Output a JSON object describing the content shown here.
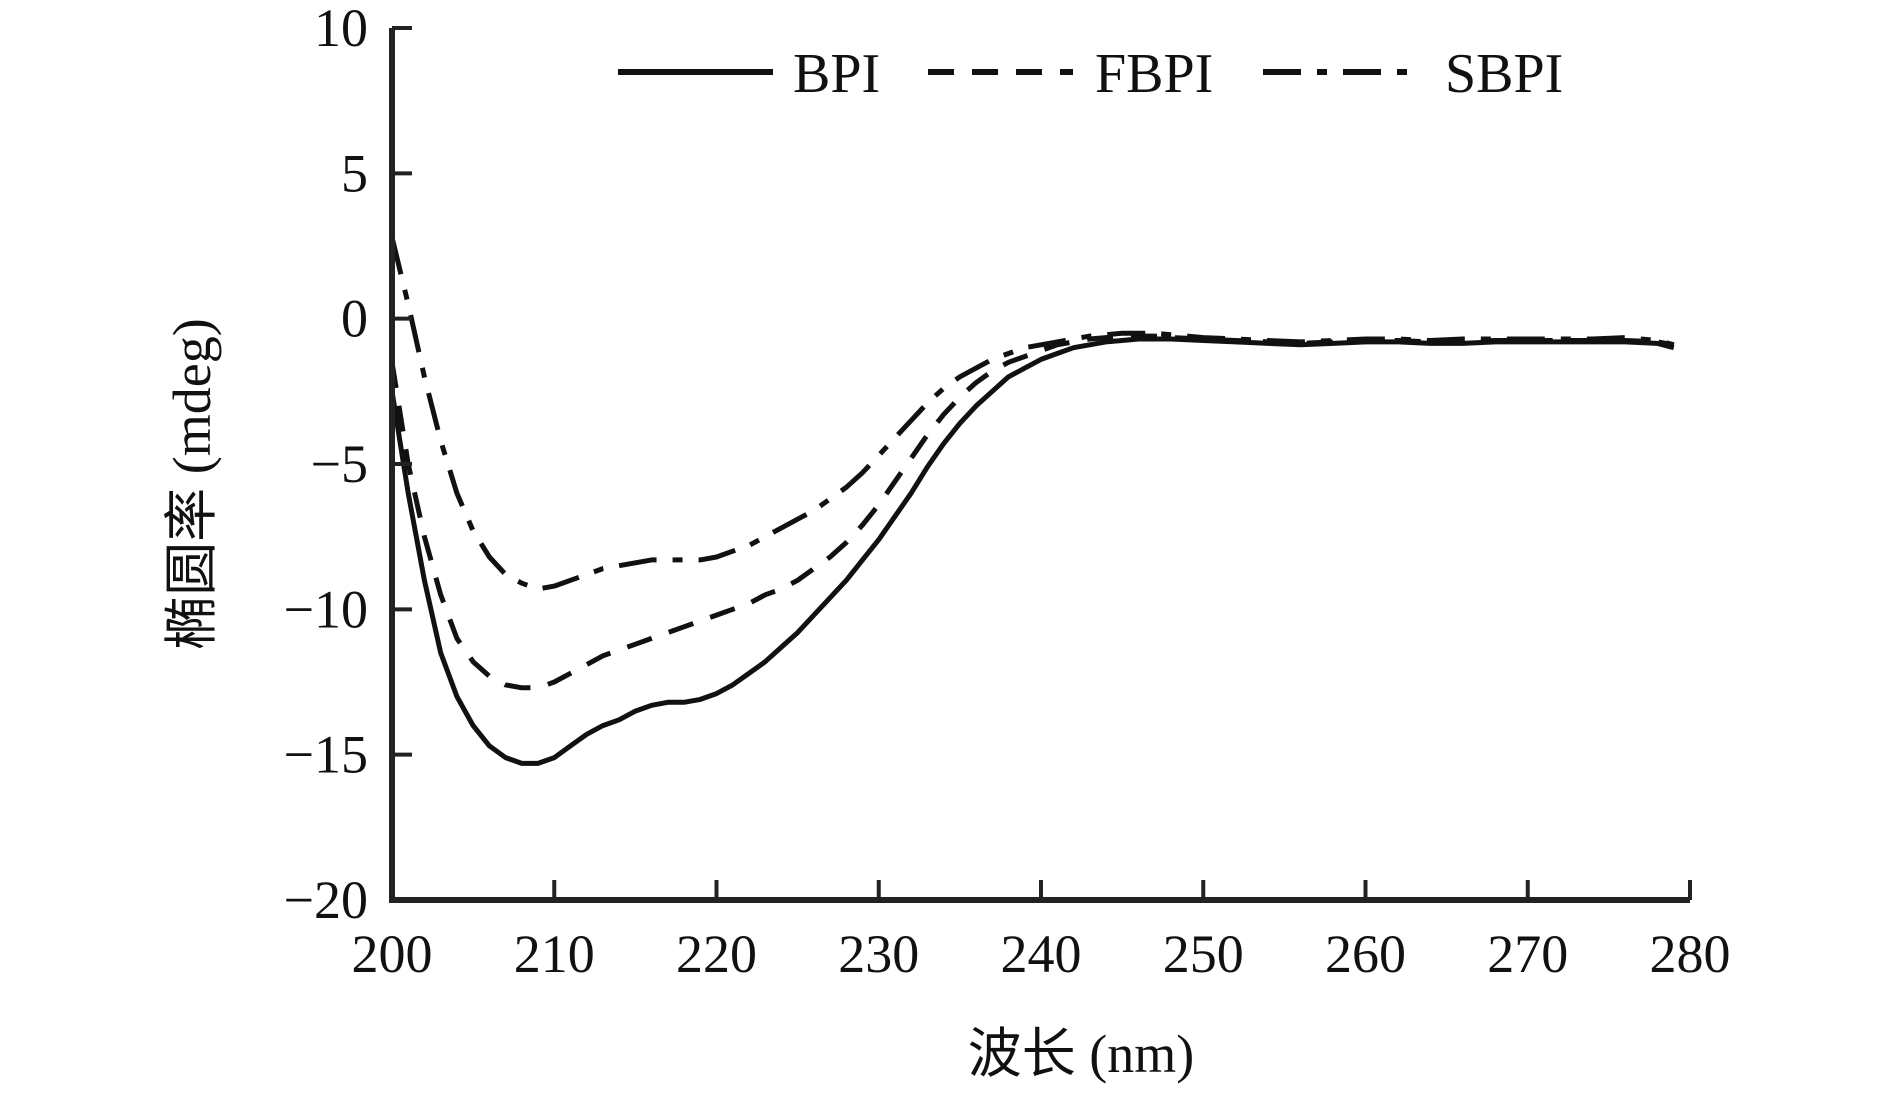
{
  "chart_data": {
    "type": "line",
    "title": "",
    "xlabel": "波长 (nm)",
    "ylabel": "椭圆率 (mdeg)",
    "xlim": [
      200,
      280
    ],
    "ylim": [
      -20,
      10
    ],
    "x_ticks": [
      200,
      210,
      220,
      230,
      240,
      250,
      260,
      270,
      280
    ],
    "x_tick_labels": [
      "200",
      "210",
      "220",
      "230",
      "240",
      "250",
      "260",
      "270",
      "280"
    ],
    "y_ticks": [
      10,
      5,
      0,
      -5,
      -10,
      -15,
      -20
    ],
    "y_tick_labels": [
      "10",
      "5",
      "0",
      "−5",
      "−10",
      "−15",
      "−20"
    ],
    "grid": false,
    "legend_position": "top",
    "series": [
      {
        "name": "BPI",
        "style": "solid",
        "color": "#111111",
        "points": [
          [
            200,
            -2.5
          ],
          [
            201,
            -6
          ],
          [
            202,
            -9
          ],
          [
            203,
            -11.5
          ],
          [
            204,
            -13
          ],
          [
            205,
            -14
          ],
          [
            206,
            -14.7
          ],
          [
            207,
            -15.1
          ],
          [
            208,
            -15.3
          ],
          [
            209,
            -15.3
          ],
          [
            210,
            -15.1
          ],
          [
            211,
            -14.7
          ],
          [
            212,
            -14.3
          ],
          [
            213,
            -14
          ],
          [
            214,
            -13.8
          ],
          [
            215,
            -13.5
          ],
          [
            216,
            -13.3
          ],
          [
            217,
            -13.2
          ],
          [
            218,
            -13.2
          ],
          [
            219,
            -13.1
          ],
          [
            220,
            -12.9
          ],
          [
            221,
            -12.6
          ],
          [
            222,
            -12.2
          ],
          [
            223,
            -11.8
          ],
          [
            224,
            -11.3
          ],
          [
            225,
            -10.8
          ],
          [
            226,
            -10.2
          ],
          [
            227,
            -9.6
          ],
          [
            228,
            -9
          ],
          [
            229,
            -8.3
          ],
          [
            230,
            -7.6
          ],
          [
            231,
            -6.8
          ],
          [
            232,
            -6
          ],
          [
            233,
            -5.1
          ],
          [
            234,
            -4.3
          ],
          [
            235,
            -3.6
          ],
          [
            236,
            -3
          ],
          [
            237,
            -2.5
          ],
          [
            238,
            -2
          ],
          [
            239,
            -1.7
          ],
          [
            240,
            -1.4
          ],
          [
            241,
            -1.2
          ],
          [
            242,
            -1
          ],
          [
            243,
            -0.9
          ],
          [
            244,
            -0.8
          ],
          [
            245,
            -0.75
          ],
          [
            246,
            -0.7
          ],
          [
            247,
            -0.7
          ],
          [
            248,
            -0.7
          ],
          [
            250,
            -0.75
          ],
          [
            252,
            -0.8
          ],
          [
            254,
            -0.85
          ],
          [
            256,
            -0.9
          ],
          [
            258,
            -0.85
          ],
          [
            260,
            -0.8
          ],
          [
            262,
            -0.8
          ],
          [
            264,
            -0.85
          ],
          [
            266,
            -0.85
          ],
          [
            268,
            -0.8
          ],
          [
            270,
            -0.8
          ],
          [
            272,
            -0.8
          ],
          [
            274,
            -0.8
          ],
          [
            276,
            -0.8
          ],
          [
            278,
            -0.85
          ],
          [
            279,
            -1
          ]
        ]
      },
      {
        "name": "FBPI",
        "style": "dashed",
        "color": "#111111",
        "points": [
          [
            200,
            -1.5
          ],
          [
            201,
            -5
          ],
          [
            202,
            -7.5
          ],
          [
            203,
            -9.5
          ],
          [
            204,
            -11
          ],
          [
            205,
            -11.8
          ],
          [
            206,
            -12.3
          ],
          [
            207,
            -12.6
          ],
          [
            208,
            -12.7
          ],
          [
            209,
            -12.7
          ],
          [
            210,
            -12.5
          ],
          [
            211,
            -12.2
          ],
          [
            212,
            -11.9
          ],
          [
            213,
            -11.6
          ],
          [
            214,
            -11.4
          ],
          [
            215,
            -11.2
          ],
          [
            216,
            -11
          ],
          [
            217,
            -10.8
          ],
          [
            218,
            -10.6
          ],
          [
            219,
            -10.4
          ],
          [
            220,
            -10.2
          ],
          [
            221,
            -10
          ],
          [
            222,
            -9.8
          ],
          [
            223,
            -9.5
          ],
          [
            224,
            -9.3
          ],
          [
            225,
            -9
          ],
          [
            226,
            -8.6
          ],
          [
            227,
            -8.2
          ],
          [
            228,
            -7.7
          ],
          [
            229,
            -7.1
          ],
          [
            230,
            -6.4
          ],
          [
            231,
            -5.6
          ],
          [
            232,
            -4.8
          ],
          [
            233,
            -4
          ],
          [
            234,
            -3.3
          ],
          [
            235,
            -2.7
          ],
          [
            236,
            -2.2
          ],
          [
            237,
            -1.8
          ],
          [
            238,
            -1.5
          ],
          [
            239,
            -1.3
          ],
          [
            240,
            -1.1
          ],
          [
            241,
            -0.9
          ],
          [
            242,
            -0.8
          ],
          [
            243,
            -0.7
          ],
          [
            244,
            -0.65
          ],
          [
            245,
            -0.6
          ],
          [
            246,
            -0.6
          ],
          [
            247,
            -0.6
          ],
          [
            248,
            -0.65
          ],
          [
            250,
            -0.7
          ],
          [
            252,
            -0.75
          ],
          [
            254,
            -0.8
          ],
          [
            256,
            -0.85
          ],
          [
            258,
            -0.8
          ],
          [
            260,
            -0.75
          ],
          [
            262,
            -0.75
          ],
          [
            264,
            -0.8
          ],
          [
            266,
            -0.8
          ],
          [
            268,
            -0.75
          ],
          [
            270,
            -0.75
          ],
          [
            272,
            -0.75
          ],
          [
            274,
            -0.75
          ],
          [
            276,
            -0.75
          ],
          [
            278,
            -0.8
          ],
          [
            279,
            -0.9
          ]
        ]
      },
      {
        "name": "SBPI",
        "style": "dashdot",
        "color": "#111111",
        "points": [
          [
            200,
            2.8
          ],
          [
            201,
            0.5
          ],
          [
            202,
            -2
          ],
          [
            203,
            -4.2
          ],
          [
            204,
            -6
          ],
          [
            205,
            -7.3
          ],
          [
            206,
            -8.2
          ],
          [
            207,
            -8.8
          ],
          [
            208,
            -9.1
          ],
          [
            209,
            -9.3
          ],
          [
            210,
            -9.2
          ],
          [
            211,
            -9
          ],
          [
            212,
            -8.8
          ],
          [
            213,
            -8.6
          ],
          [
            214,
            -8.5
          ],
          [
            215,
            -8.4
          ],
          [
            216,
            -8.3
          ],
          [
            217,
            -8.3
          ],
          [
            218,
            -8.3
          ],
          [
            219,
            -8.3
          ],
          [
            220,
            -8.2
          ],
          [
            221,
            -8
          ],
          [
            222,
            -7.8
          ],
          [
            223,
            -7.5
          ],
          [
            224,
            -7.2
          ],
          [
            225,
            -6.9
          ],
          [
            226,
            -6.6
          ],
          [
            227,
            -6.2
          ],
          [
            228,
            -5.8
          ],
          [
            229,
            -5.3
          ],
          [
            230,
            -4.7
          ],
          [
            231,
            -4.1
          ],
          [
            232,
            -3.5
          ],
          [
            233,
            -2.9
          ],
          [
            234,
            -2.4
          ],
          [
            235,
            -2
          ],
          [
            236,
            -1.7
          ],
          [
            237,
            -1.4
          ],
          [
            238,
            -1.2
          ],
          [
            239,
            -1
          ],
          [
            240,
            -0.9
          ],
          [
            241,
            -0.8
          ],
          [
            242,
            -0.7
          ],
          [
            243,
            -0.6
          ],
          [
            244,
            -0.55
          ],
          [
            245,
            -0.5
          ],
          [
            246,
            -0.5
          ],
          [
            247,
            -0.5
          ],
          [
            248,
            -0.55
          ],
          [
            250,
            -0.65
          ],
          [
            252,
            -0.7
          ],
          [
            254,
            -0.75
          ],
          [
            256,
            -0.8
          ],
          [
            258,
            -0.75
          ],
          [
            260,
            -0.7
          ],
          [
            262,
            -0.7
          ],
          [
            264,
            -0.75
          ],
          [
            266,
            -0.7
          ],
          [
            268,
            -0.7
          ],
          [
            270,
            -0.7
          ],
          [
            272,
            -0.7
          ],
          [
            274,
            -0.7
          ],
          [
            276,
            -0.65
          ],
          [
            278,
            -0.75
          ],
          [
            279,
            -0.9
          ]
        ]
      }
    ]
  }
}
